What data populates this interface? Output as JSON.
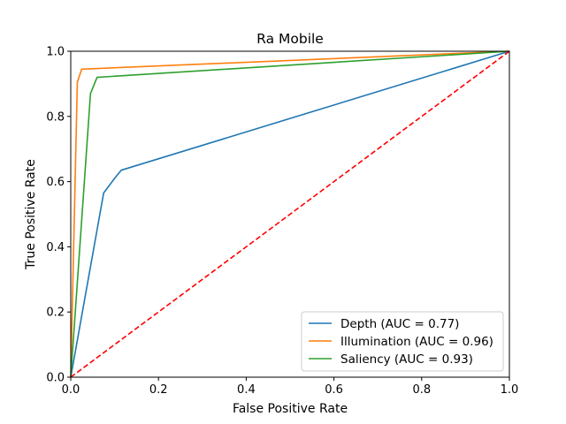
{
  "chart_data": {
    "type": "line",
    "title": "Ra Mobile",
    "xlabel": "False Positive Rate",
    "ylabel": "True Positive Rate",
    "xlim": [
      0.0,
      1.0
    ],
    "ylim": [
      0.0,
      1.0
    ],
    "xticks": [
      "0.0",
      "0.2",
      "0.4",
      "0.6",
      "0.8",
      "1.0"
    ],
    "yticks": [
      "0.0",
      "0.2",
      "0.4",
      "0.6",
      "0.8",
      "1.0"
    ],
    "grid": false,
    "legend_position": "lower-right",
    "series": [
      {
        "name": "Depth (AUC = 0.77)",
        "color": "#1f77b4",
        "style": "solid",
        "x": [
          0.0,
          0.075,
          0.1,
          0.115,
          1.0
        ],
        "y": [
          0.0,
          0.565,
          0.61,
          0.635,
          1.0
        ]
      },
      {
        "name": "Illumination (AUC = 0.96)",
        "color": "#ff7f0e",
        "style": "solid",
        "x": [
          0.0,
          0.015,
          0.025,
          1.0
        ],
        "y": [
          0.0,
          0.905,
          0.945,
          1.0
        ]
      },
      {
        "name": "Saliency (AUC = 0.93)",
        "color": "#2ca02c",
        "style": "solid",
        "x": [
          0.0,
          0.045,
          0.06,
          1.0
        ],
        "y": [
          0.0,
          0.87,
          0.92,
          1.0
        ]
      }
    ],
    "reference_line": {
      "color": "#ff0000",
      "style": "dashed",
      "x": [
        0.0,
        1.0
      ],
      "y": [
        0.0,
        1.0
      ]
    }
  }
}
